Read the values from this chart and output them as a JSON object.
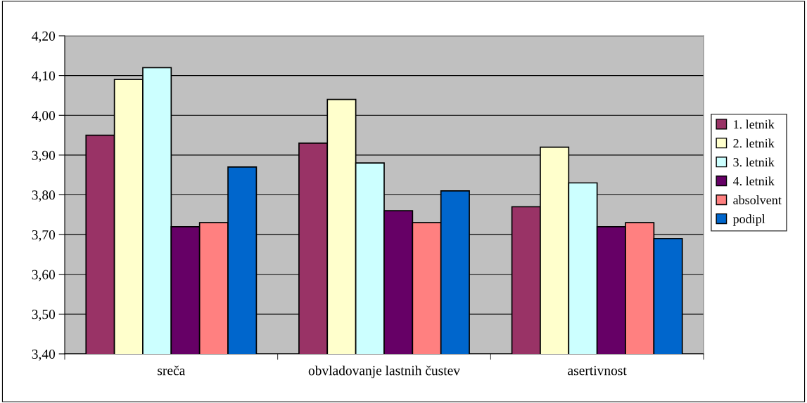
{
  "chart_data": {
    "type": "bar",
    "categories": [
      "sreča",
      "obvladovanje lastnih čustev",
      "asertivnost"
    ],
    "series": [
      {
        "name": "1. letnik",
        "color": "#993366",
        "values": [
          3.95,
          3.93,
          3.77
        ]
      },
      {
        "name": "2. letnik",
        "color": "#ffffcc",
        "values": [
          4.09,
          4.04,
          3.92
        ]
      },
      {
        "name": "3. letnik",
        "color": "#ccffff",
        "values": [
          4.12,
          3.88,
          3.83
        ]
      },
      {
        "name": "4. letnik",
        "color": "#660066",
        "values": [
          3.72,
          3.76,
          3.72
        ]
      },
      {
        "name": "absolvent",
        "color": "#ff8080",
        "values": [
          3.73,
          3.73,
          3.73
        ]
      },
      {
        "name": "podipl",
        "color": "#0066cc",
        "values": [
          3.87,
          3.81,
          3.69
        ]
      }
    ],
    "ylim": [
      3.4,
      4.2
    ],
    "yticks": [
      {
        "value": 3.4,
        "label": "3,40"
      },
      {
        "value": 3.5,
        "label": "3,50"
      },
      {
        "value": 3.6,
        "label": "3,60"
      },
      {
        "value": 3.7,
        "label": "3,70"
      },
      {
        "value": 3.8,
        "label": "3,80"
      },
      {
        "value": 3.9,
        "label": "3,90"
      },
      {
        "value": 4.0,
        "label": "4,00"
      },
      {
        "value": 4.1,
        "label": "4,10"
      },
      {
        "value": 4.2,
        "label": "4,20"
      }
    ],
    "grid": "y",
    "legend": "right"
  }
}
